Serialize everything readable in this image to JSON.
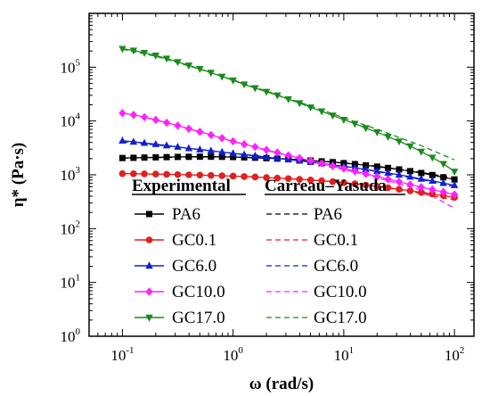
{
  "chart_data": {
    "type": "line",
    "xlabel": "ω (rad/s)",
    "ylabel": "η* (Pa·s)",
    "xscale": "log",
    "yscale": "log",
    "xlim": [
      0.05,
      150
    ],
    "ylim": [
      1,
      1000000
    ],
    "x_ticks": [
      {
        "base": "10",
        "exp": "-1"
      },
      {
        "base": "10",
        "exp": "0"
      },
      {
        "base": "10",
        "exp": "1"
      },
      {
        "base": "10",
        "exp": "2"
      }
    ],
    "y_ticks": [
      {
        "base": "10",
        "exp": "0"
      },
      {
        "base": "10",
        "exp": "1"
      },
      {
        "base": "10",
        "exp": "2"
      },
      {
        "base": "10",
        "exp": "3"
      },
      {
        "base": "10",
        "exp": "4"
      },
      {
        "base": "10",
        "exp": "5"
      }
    ],
    "legend": {
      "placement": "lower-center",
      "experimental_header": "Experimental",
      "model_header": "Carreau–Yasuda"
    },
    "grid": false,
    "experimental": [
      {
        "name": "PA6",
        "color": "#000000",
        "marker": "square",
        "x": [
          0.1,
          0.126,
          0.158,
          0.2,
          0.251,
          0.316,
          0.398,
          0.501,
          0.631,
          0.794,
          1,
          1.26,
          1.58,
          2,
          2.51,
          3.16,
          3.98,
          5.01,
          6.31,
          7.94,
          10,
          12.6,
          15.8,
          20,
          25.1,
          31.6,
          39.8,
          50.1,
          63.1,
          79.4,
          100
        ],
        "y": [
          2050,
          2070,
          2090,
          2110,
          2130,
          2150,
          2160,
          2170,
          2170,
          2160,
          2140,
          2110,
          2080,
          2040,
          2000,
          1950,
          1900,
          1840,
          1780,
          1720,
          1650,
          1580,
          1500,
          1420,
          1340,
          1260,
          1170,
          1080,
          990,
          900,
          820
        ]
      },
      {
        "name": "GC0.1",
        "color": "#e02020",
        "marker": "circle",
        "x": [
          0.1,
          0.126,
          0.158,
          0.2,
          0.251,
          0.316,
          0.398,
          0.501,
          0.631,
          0.794,
          1,
          1.26,
          1.58,
          2,
          2.51,
          3.16,
          3.98,
          5.01,
          6.31,
          7.94,
          10,
          12.6,
          15.8,
          20,
          25.1,
          31.6,
          39.8,
          50.1,
          63.1,
          79.4,
          100
        ],
        "y": [
          1050,
          1045,
          1040,
          1030,
          1020,
          1010,
          1000,
          990,
          975,
          960,
          945,
          930,
          910,
          890,
          870,
          850,
          825,
          800,
          775,
          745,
          715,
          680,
          645,
          610,
          575,
          540,
          505,
          470,
          440,
          410,
          380
        ]
      },
      {
        "name": "GC6.0",
        "color": "#1020d0",
        "marker": "triangle",
        "x": [
          0.1,
          0.126,
          0.158,
          0.2,
          0.251,
          0.316,
          0.398,
          0.501,
          0.631,
          0.794,
          1,
          1.26,
          1.58,
          2,
          2.51,
          3.16,
          3.98,
          5.01,
          6.31,
          7.94,
          10,
          12.6,
          15.8,
          20,
          25.1,
          31.6,
          39.8,
          50.1,
          63.1,
          79.4,
          100
        ],
        "y": [
          4300,
          4100,
          3900,
          3700,
          3500,
          3300,
          3100,
          2950,
          2800,
          2650,
          2500,
          2380,
          2250,
          2130,
          2020,
          1920,
          1820,
          1720,
          1620,
          1530,
          1440,
          1350,
          1260,
          1170,
          1080,
          1000,
          920,
          840,
          770,
          700,
          640
        ]
      },
      {
        "name": "GC10.0",
        "color": "#ff20ff",
        "marker": "diamond",
        "x": [
          0.1,
          0.126,
          0.158,
          0.2,
          0.251,
          0.316,
          0.398,
          0.501,
          0.631,
          0.794,
          1,
          1.26,
          1.58,
          2,
          2.51,
          3.16,
          3.98,
          5.01,
          6.31,
          7.94,
          10,
          12.6,
          15.8,
          20,
          25.1,
          31.6,
          39.8,
          50.1,
          63.1,
          79.4,
          100
        ],
        "y": [
          14000,
          13000,
          11800,
          10500,
          9300,
          8200,
          7200,
          6300,
          5500,
          4800,
          4200,
          3700,
          3300,
          2900,
          2600,
          2300,
          2050,
          1830,
          1630,
          1460,
          1310,
          1170,
          1040,
          930,
          830,
          740,
          660,
          590,
          530,
          480,
          430
        ]
      },
      {
        "name": "GC17.0",
        "color": "#1a8a1a",
        "marker": "triangle-down",
        "x": [
          0.1,
          0.126,
          0.158,
          0.2,
          0.251,
          0.316,
          0.398,
          0.501,
          0.631,
          0.794,
          1,
          1.26,
          1.58,
          2,
          2.51,
          3.16,
          3.98,
          5.01,
          6.31,
          7.94,
          10,
          12.6,
          15.8,
          20,
          25.1,
          31.6,
          39.8,
          50.1,
          63.1,
          79.4,
          100
        ],
        "y": [
          220000,
          205000,
          185000,
          165000,
          145000,
          125000,
          108000,
          93000,
          79000,
          67000,
          57000,
          48000,
          41000,
          35000,
          30000,
          25500,
          21500,
          18000,
          15200,
          12700,
          10600,
          8900,
          7400,
          6200,
          5100,
          4200,
          3400,
          2700,
          2100,
          1600,
          1150
        ]
      }
    ],
    "model": [
      {
        "name": "PA6",
        "color": "#000000",
        "x": [
          0.1,
          0.2,
          0.5,
          1,
          2,
          5,
          10,
          20,
          50,
          100
        ],
        "y": [
          2040,
          2100,
          2150,
          2140,
          2060,
          1860,
          1660,
          1440,
          1110,
          870
        ]
      },
      {
        "name": "GC0.1",
        "color": "#e02020",
        "x": [
          0.1,
          0.2,
          0.5,
          1,
          2,
          5,
          10,
          20,
          50,
          100
        ],
        "y": [
          1050,
          1030,
          990,
          945,
          890,
          800,
          715,
          610,
          450,
          340
        ]
      },
      {
        "name": "GC6.0",
        "color": "#1020d0",
        "x": [
          0.1,
          0.2,
          0.5,
          1,
          2,
          5,
          10,
          20,
          50,
          100
        ],
        "y": [
          4100,
          3600,
          2950,
          2520,
          2150,
          1720,
          1420,
          1150,
          820,
          600
        ]
      },
      {
        "name": "GC10.0",
        "color": "#ff20ff",
        "x": [
          0.1,
          0.2,
          0.5,
          1,
          2,
          5,
          10,
          20,
          50,
          100
        ],
        "y": [
          14200,
          10400,
          6300,
          4150,
          2850,
          1780,
          1250,
          880,
          520,
          240
        ]
      },
      {
        "name": "GC17.0",
        "color": "#1a8a1a",
        "x": [
          0.1,
          0.2,
          0.5,
          1,
          2,
          5,
          10,
          20,
          50,
          100
        ],
        "y": [
          215000,
          160000,
          92000,
          58000,
          36000,
          19000,
          11500,
          7000,
          3500,
          1900
        ]
      }
    ]
  }
}
